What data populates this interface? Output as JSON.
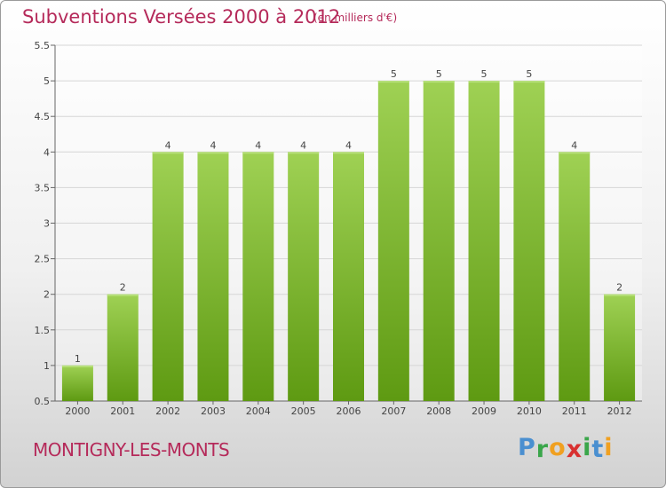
{
  "header": {
    "title": "Subventions Versées 2000 à 2012",
    "subtitle": "(en milliers d'€)"
  },
  "footer": {
    "commune": "MONTIGNY-LES-MONTS",
    "logo_letters": [
      "P",
      "r",
      "o",
      "x",
      "i",
      "t",
      "i"
    ]
  },
  "colors": {
    "title": "#b52a5a",
    "bar_top": "#9fd154",
    "bar_bottom": "#5e9a12",
    "logo": [
      "#4a8fd0",
      "#3aa64a",
      "#f0a020",
      "#d83030",
      "#3aa64a",
      "#4a8fd0",
      "#f0a020"
    ]
  },
  "chart_data": {
    "type": "bar",
    "categories": [
      "2000",
      "2001",
      "2002",
      "2003",
      "2004",
      "2005",
      "2006",
      "2007",
      "2008",
      "2009",
      "2010",
      "2011",
      "2012"
    ],
    "values": [
      1,
      2,
      4,
      4,
      4,
      4,
      4,
      5,
      5,
      5,
      5,
      4,
      2
    ],
    "data_labels": [
      "1",
      "2",
      "4",
      "4",
      "4",
      "4",
      "4",
      "5",
      "5",
      "5",
      "5",
      "4",
      "2"
    ],
    "yticks": [
      "0.5",
      "1",
      "1.5",
      "2",
      "2.5",
      "3",
      "3.5",
      "4",
      "4.5",
      "5",
      "5.5"
    ],
    "ylim": [
      0.5,
      5.5
    ],
    "grid": "horizontal",
    "legend": "none"
  }
}
